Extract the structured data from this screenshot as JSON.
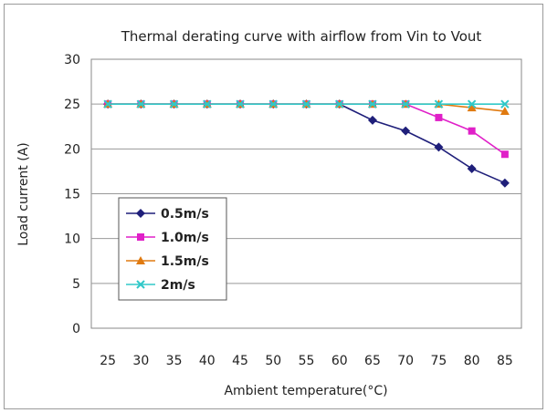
{
  "chart_data": {
    "type": "line",
    "title": "Thermal derating curve with airflow from Vin to Vout",
    "xlabel": "Ambient temperature(°C)",
    "ylabel": "Load current (A)",
    "x": [
      25,
      30,
      35,
      40,
      45,
      50,
      55,
      60,
      65,
      70,
      75,
      80,
      85
    ],
    "ylim": [
      0,
      30
    ],
    "yticks": [
      0,
      5,
      10,
      15,
      20,
      25,
      30
    ],
    "grid": "horizontal",
    "legend_position": "left-center",
    "series": [
      {
        "name": "0.5m/s",
        "color": "#1f1f7a",
        "marker": "diamond",
        "values": [
          25,
          25,
          25,
          25,
          25,
          25,
          25,
          25,
          23.2,
          22,
          20.2,
          17.8,
          16.2
        ]
      },
      {
        "name": "1.0m/s",
        "color": "#e020c8",
        "marker": "square",
        "values": [
          25,
          25,
          25,
          25,
          25,
          25,
          25,
          25,
          25,
          25,
          23.5,
          22,
          19.4
        ]
      },
      {
        "name": "1.5m/s",
        "color": "#e07a10",
        "marker": "triangle",
        "values": [
          25,
          25,
          25,
          25,
          25,
          25,
          25,
          25,
          25,
          25,
          25,
          24.6,
          24.2
        ]
      },
      {
        "name": "2m/s",
        "color": "#30c8c8",
        "marker": "x",
        "values": [
          25,
          25,
          25,
          25,
          25,
          25,
          25,
          25,
          25,
          25,
          25,
          25,
          25
        ]
      }
    ]
  }
}
